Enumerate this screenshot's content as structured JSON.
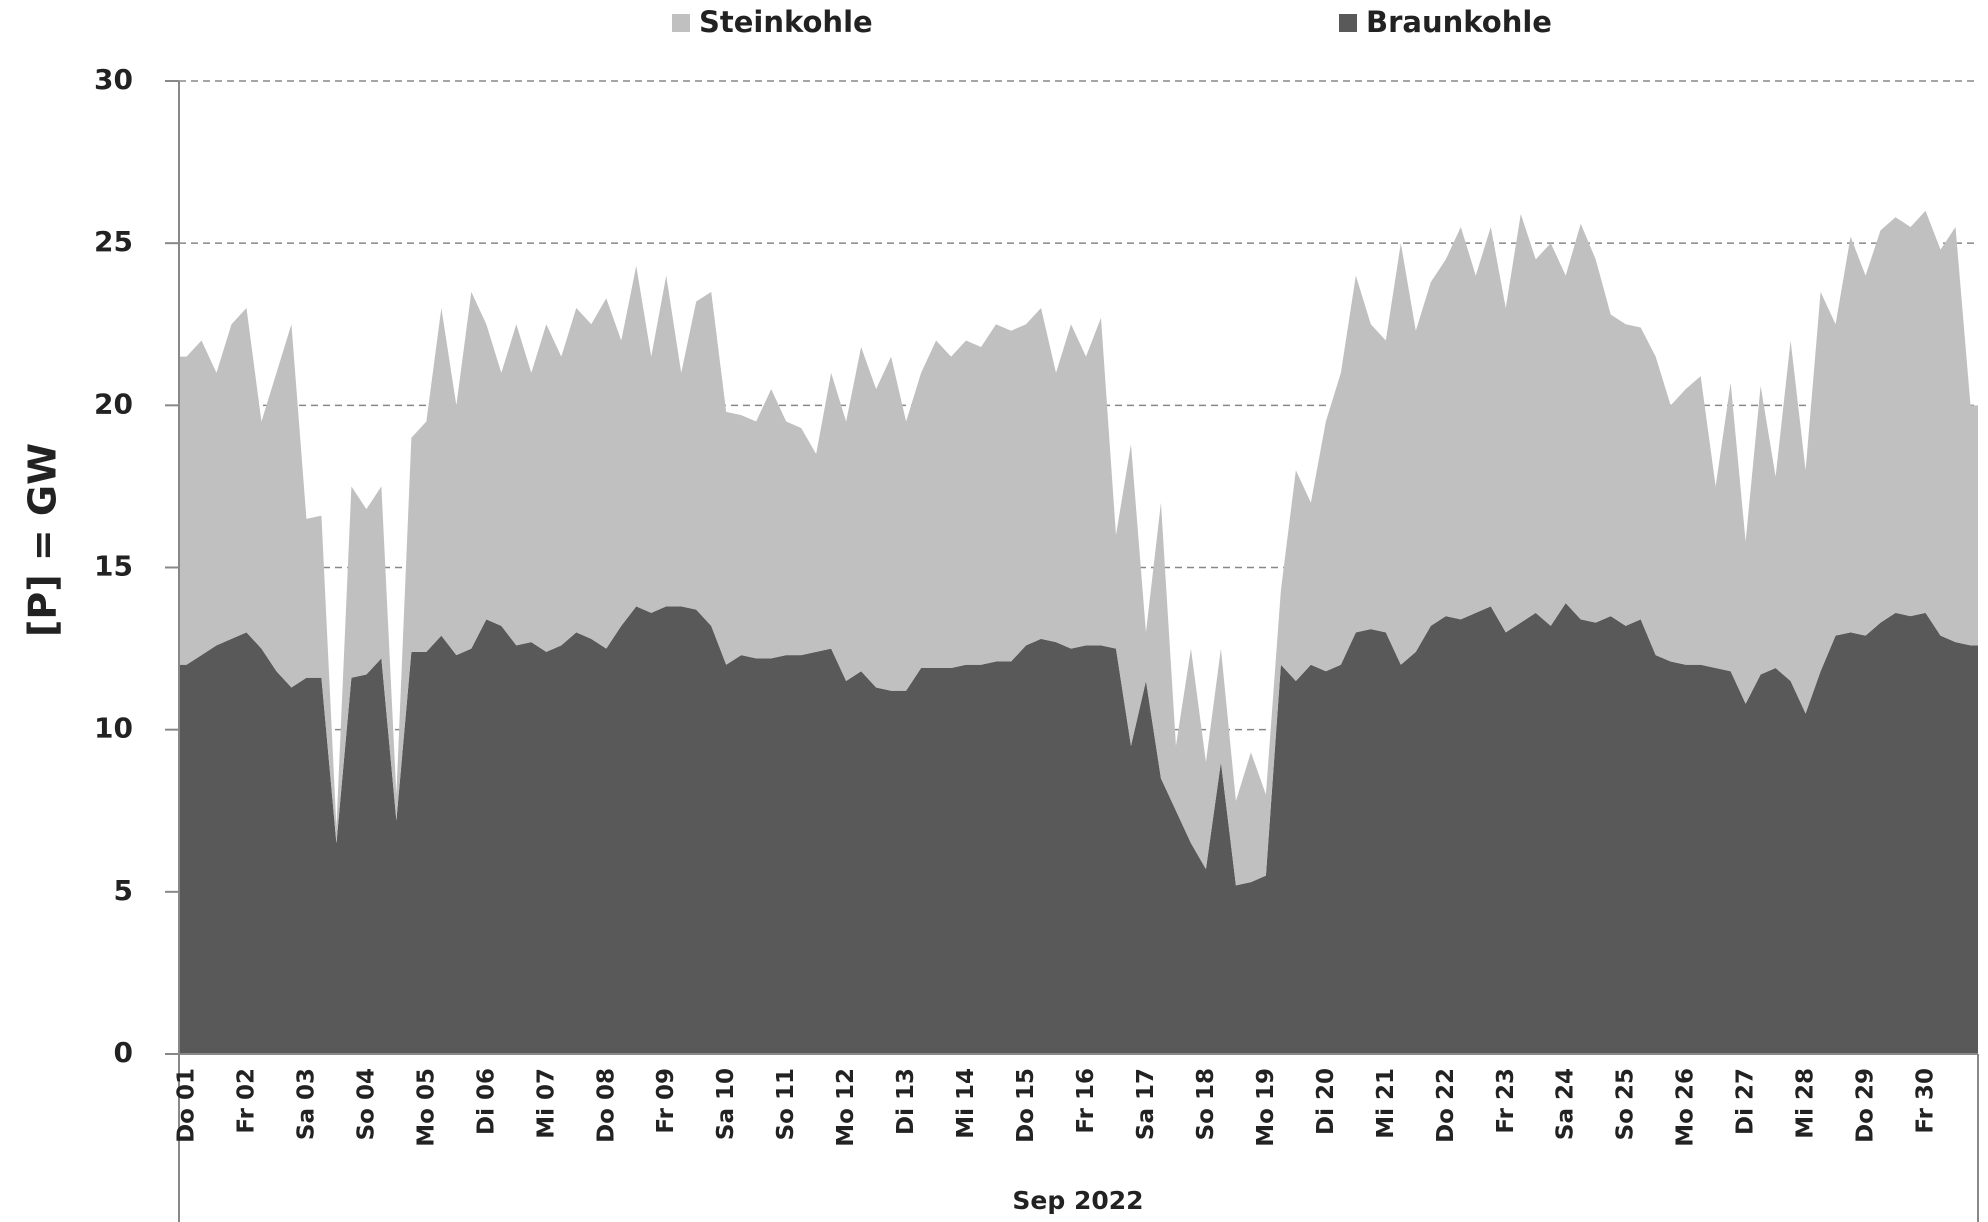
{
  "chart_data": {
    "type": "stacked_area",
    "y_label": "[P]  = GW",
    "x_group_label": "Sep 2022",
    "categories": [
      "Do 01",
      null,
      null,
      null,
      "Fr 02",
      null,
      null,
      null,
      "Sa 03",
      null,
      null,
      null,
      "So 04",
      null,
      null,
      null,
      "Mo 05",
      null,
      null,
      null,
      "Di 06",
      null,
      null,
      null,
      "Mi 07",
      null,
      null,
      null,
      "Do 08",
      null,
      null,
      null,
      "Fr 09",
      null,
      null,
      null,
      "Sa 10",
      null,
      null,
      null,
      "So 11",
      null,
      null,
      null,
      "Mo 12",
      null,
      null,
      null,
      "Di 13",
      null,
      null,
      null,
      "Mi 14",
      null,
      null,
      null,
      "Do 15",
      null,
      null,
      null,
      "Fr 16",
      null,
      null,
      null,
      "Sa 17",
      null,
      null,
      null,
      "So 18",
      null,
      null,
      null,
      "Mo 19",
      null,
      null,
      null,
      "Di 20",
      null,
      null,
      null,
      "Mi 21",
      null,
      null,
      null,
      "Do 22",
      null,
      null,
      null,
      "Fr 23",
      null,
      null,
      null,
      "Sa 24",
      null,
      null,
      null,
      "So 25",
      null,
      null,
      null,
      "Mo 26",
      null,
      null,
      null,
      "Di 27",
      null,
      null,
      null,
      "Mi 28",
      null,
      null,
      null,
      "Do 29",
      null,
      null,
      null,
      "Fr 30",
      null,
      null,
      null
    ],
    "series": [
      {
        "name": "Steinkohle",
        "color": "#c0c0c0",
        "values": [
          9.5,
          9.7,
          8.4,
          9.7,
          10,
          7,
          9.2,
          11.2,
          4.9,
          5,
          0.5,
          5.9,
          5.1,
          5.3,
          0.8,
          6.6,
          7.1,
          10.1,
          7.7,
          11,
          9.1,
          7.8,
          9.9,
          8.3,
          10.1,
          8.9,
          10,
          9.7,
          10.8,
          8.8,
          10.5,
          7.9,
          10.2,
          7.2,
          9.5,
          10.3,
          7.8,
          7.4,
          7.3,
          8.3,
          7.2,
          7,
          6.1,
          8.5,
          8,
          10,
          9.2,
          10.3,
          8.3,
          9.1,
          10.1,
          9.6,
          10,
          9.8,
          10.4,
          10.2,
          9.9,
          10.2,
          8.3,
          10,
          8.9,
          10.1,
          3.5,
          9.3,
          1.5,
          8.5,
          2,
          6,
          3.3,
          3.5,
          2.6,
          4,
          2.5,
          2.3,
          6.5,
          5,
          7.7,
          9,
          11,
          9.4,
          9,
          13,
          9.9,
          10.6,
          11,
          12.1,
          10.4,
          11.7,
          10,
          12.6,
          10.9,
          11.8,
          10.1,
          12.2,
          11.2,
          9.3,
          9.3,
          9,
          9.2,
          7.9,
          8.5,
          8.9,
          5.6,
          8.9,
          5,
          8.9,
          5.9,
          10.5,
          7.5,
          11.7,
          9.6,
          12.2,
          11.1,
          12.1,
          12.2,
          12,
          12.4,
          11.9,
          12.8,
          7.4
        ]
      },
      {
        "name": "Braunkohle",
        "color": "#595959",
        "values": [
          12,
          12.3,
          12.6,
          12.8,
          13,
          12.5,
          11.8,
          11.3,
          11.6,
          11.6,
          6.5,
          11.6,
          11.7,
          12.2,
          7.2,
          12.4,
          12.4,
          12.9,
          12.3,
          12.5,
          13.4,
          13.2,
          12.6,
          12.7,
          12.4,
          12.6,
          13,
          12.8,
          12.5,
          13.2,
          13.8,
          13.6,
          13.8,
          13.8,
          13.7,
          13.2,
          12,
          12.3,
          12.2,
          12.2,
          12.3,
          12.3,
          12.4,
          12.5,
          11.5,
          11.8,
          11.3,
          11.2,
          11.2,
          11.9,
          11.9,
          11.9,
          12,
          12,
          12.1,
          12.1,
          12.6,
          12.8,
          12.7,
          12.5,
          12.6,
          12.6,
          12.5,
          9.5,
          11.5,
          8.5,
          7.5,
          6.5,
          5.7,
          9,
          5.2,
          5.3,
          5.5,
          12,
          11.5,
          12,
          11.8,
          12,
          13,
          13.1,
          13,
          12,
          12.4,
          13.2,
          13.5,
          13.4,
          13.6,
          13.8,
          13,
          13.3,
          13.6,
          13.2,
          13.9,
          13.4,
          13.3,
          13.5,
          13.2,
          13.4,
          12.3,
          12.1,
          12,
          12,
          11.9,
          11.8,
          10.8,
          11.7,
          11.9,
          11.5,
          10.5,
          11.8,
          12.9,
          13,
          12.9,
          13.3,
          13.6,
          13.5,
          13.6,
          12.9,
          12.7,
          12.6
        ]
      }
    ],
    "ylim": [
      0,
      30
    ],
    "yticks": [
      0,
      5,
      10,
      15,
      20,
      25,
      30
    ],
    "grid": true
  }
}
